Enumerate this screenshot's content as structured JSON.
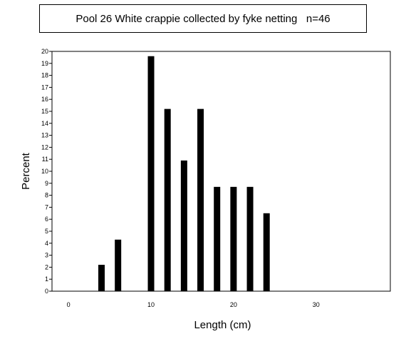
{
  "chart_data": {
    "type": "bar",
    "title": "Pool 26 White crappie collected by fyke netting   n=46",
    "xlabel": "Length (cm)",
    "ylabel": "Percent",
    "xlim": [
      -2,
      39
    ],
    "ylim": [
      0,
      20
    ],
    "x_ticks": [
      0,
      10,
      20,
      30
    ],
    "y_ticks": [
      0,
      1,
      2,
      3,
      4,
      5,
      6,
      7,
      8,
      9,
      10,
      11,
      12,
      13,
      14,
      15,
      16,
      17,
      18,
      19,
      20
    ],
    "x": [
      4,
      6,
      10,
      12,
      14,
      16,
      18,
      20,
      22,
      24
    ],
    "values": [
      2.2,
      4.3,
      19.6,
      15.2,
      10.9,
      15.2,
      8.7,
      8.7,
      8.7,
      6.5
    ],
    "grid": false,
    "bar_color": "#000000"
  }
}
